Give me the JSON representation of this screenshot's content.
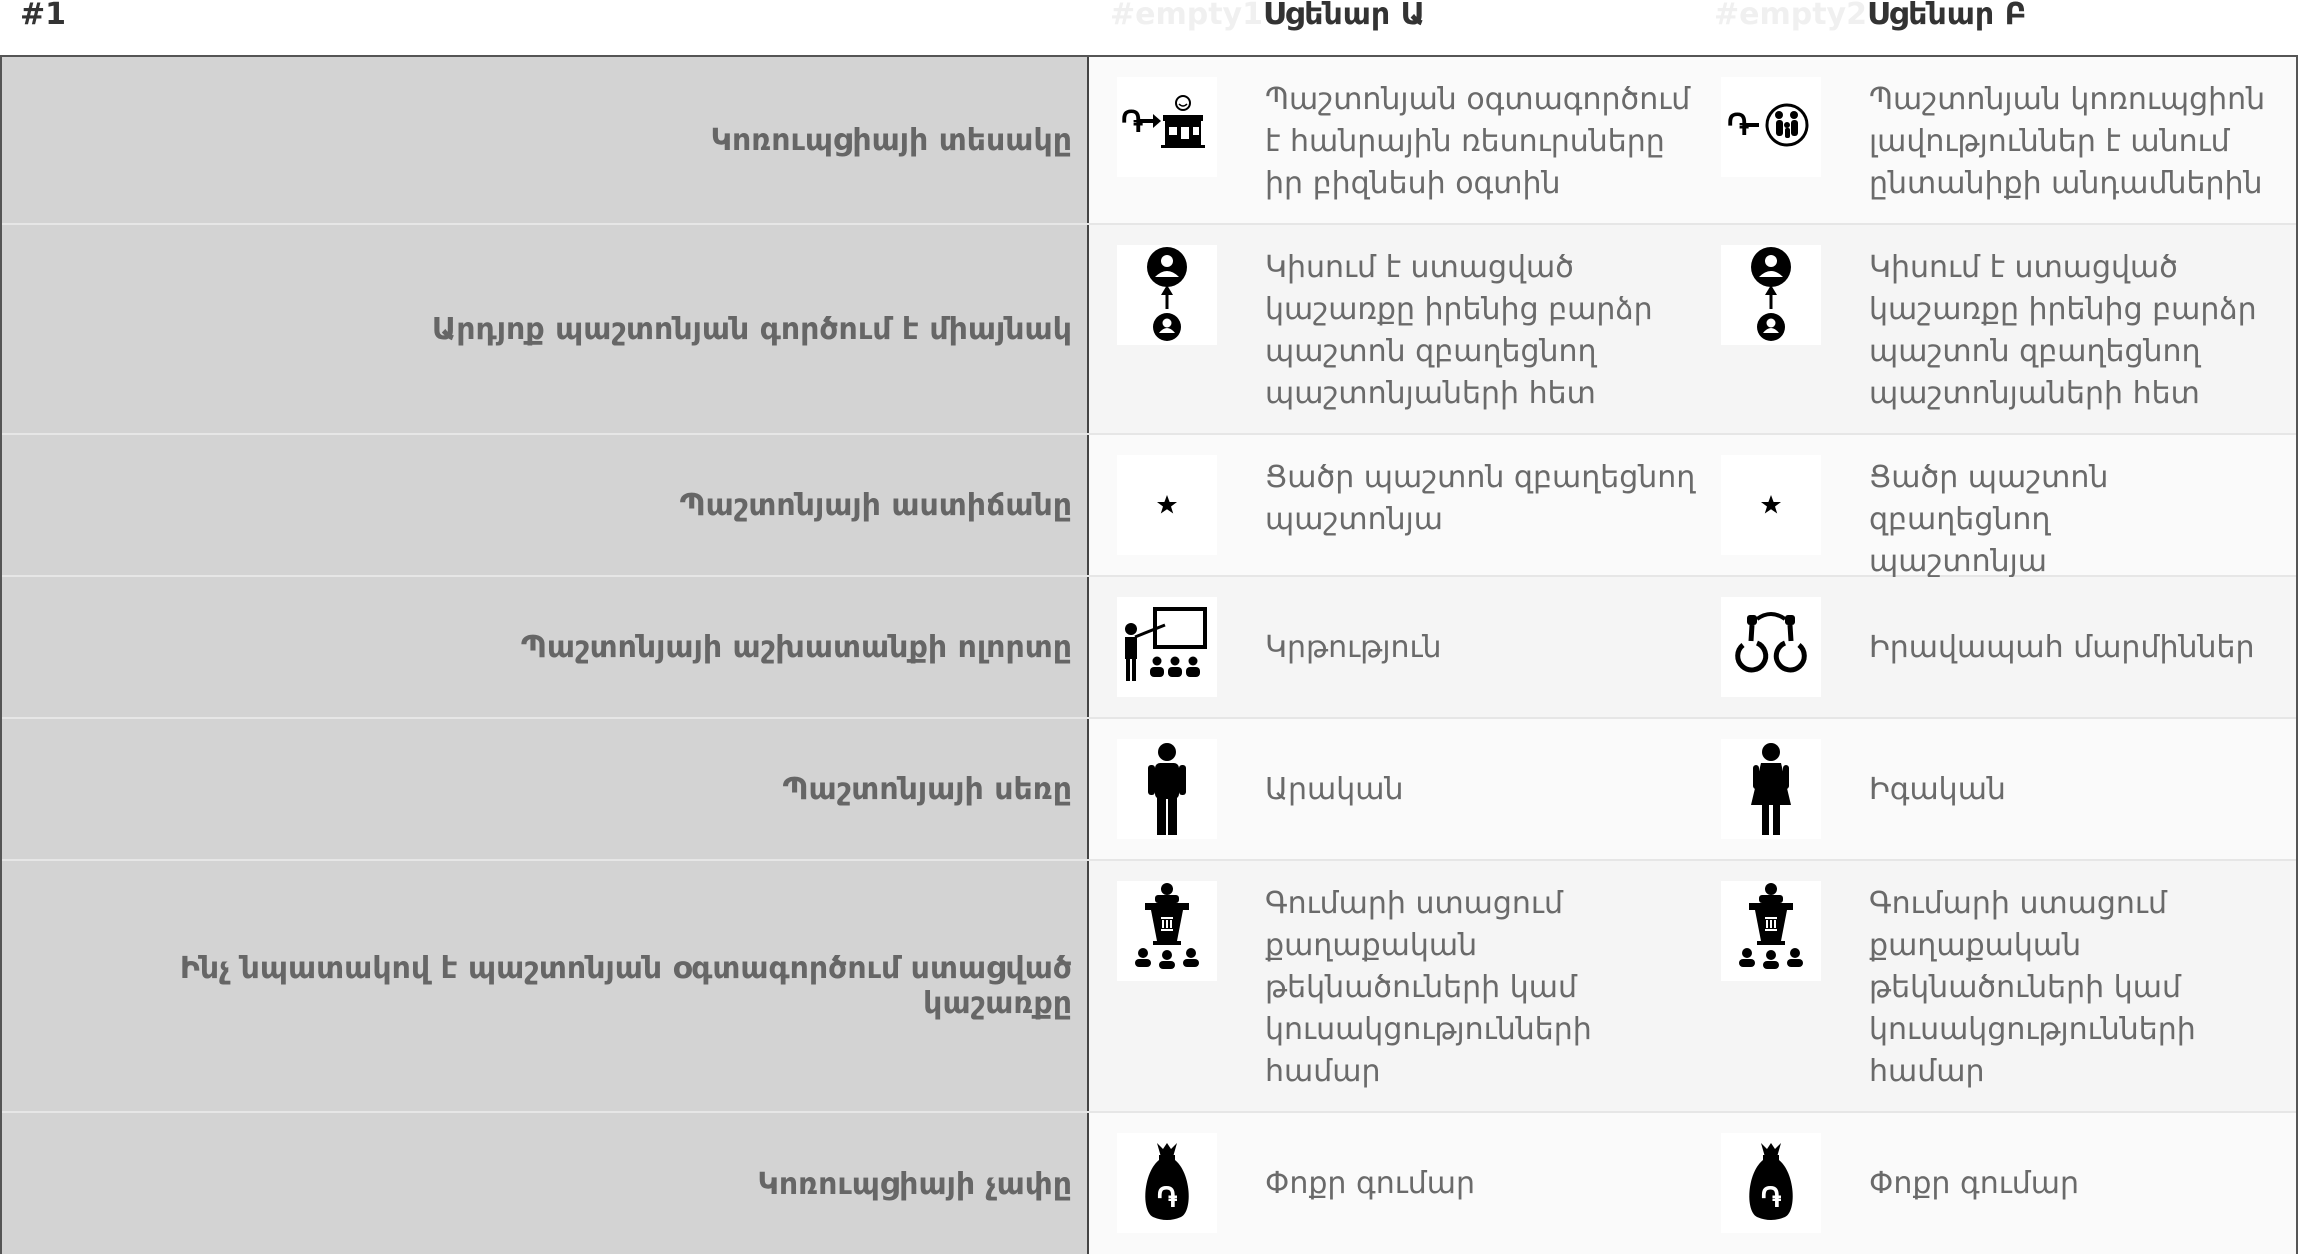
{
  "header": {
    "number": "#1",
    "ghost_a": "#empty1",
    "scenario_a": "Սցենար Ա",
    "ghost_b": "#empty2",
    "scenario_b": "Սցենար Բ"
  },
  "rows": [
    {
      "label": "Կոռուպցիայի տեսակը",
      "a": {
        "icon": "money-to-shop-icon",
        "text": [
          "Պաշտոնյան օգտագործում",
          "է հանրային ռեսուրսները",
          "իր բիզնեսի օգտին"
        ]
      },
      "b": {
        "icon": "money-to-family-icon",
        "text": [
          "Պաշտոնյան կոռուպցիոն",
          "լավություններ է անում",
          "ընտանիքի անդամներին"
        ]
      }
    },
    {
      "label": "Արդյոք պաշտոնյան գործում է միայնակ",
      "a": {
        "icon": "person-to-superior-icon",
        "text": [
          "Կիսում է ստացված",
          "կաշառքը իրենից բարձր",
          "պաշտոն զբաղեցնող",
          "պաշտոնյաների հետ"
        ]
      },
      "b": {
        "icon": "person-to-superior-icon",
        "text": [
          "Կիսում է ստացված",
          "կաշառքը իրենից բարձր",
          "պաշտոն զբաղեցնող",
          "պաշտոնյաների հետ"
        ]
      }
    },
    {
      "label": "Պաշտոնյայի աստիճանը",
      "a": {
        "icon": "star-icon",
        "text": [
          "Ցածր պաշտոն զբաղեցնող",
          "պաշտոնյա"
        ]
      },
      "b": {
        "icon": "star-icon",
        "text": [
          "Ցածր պաշտոն զբաղեցնող",
          "պաշտոնյա"
        ]
      }
    },
    {
      "label": "Պաշտոնյայի աշխատանքի ոլորտը",
      "a": {
        "icon": "teacher-classroom-icon",
        "text": [
          "Կրթություն"
        ]
      },
      "b": {
        "icon": "handcuffs-icon",
        "text": [
          "Իրավապահ մարմիններ"
        ]
      }
    },
    {
      "label": "Պաշտոնյայի սեռը",
      "a": {
        "icon": "man-icon",
        "text": [
          "Արական"
        ]
      },
      "b": {
        "icon": "woman-icon",
        "text": [
          "Իգական"
        ]
      }
    },
    {
      "label": "Ինչ նպատակով է պաշտոնյան օգտագործում ստացված կաշառքը",
      "a": {
        "icon": "podium-speaker-icon",
        "text": [
          "Գումարի ստացում",
          "քաղաքական",
          "թեկնածուների կամ",
          "կուսակցությունների",
          "համար"
        ]
      },
      "b": {
        "icon": "podium-speaker-icon",
        "text": [
          "Գումարի ստացում",
          "քաղաքական",
          "թեկնածուների կամ",
          "կուսակցությունների",
          "համար"
        ]
      }
    },
    {
      "label": "Կոռուպցիայի չափը",
      "a": {
        "icon": "money-bag-icon",
        "text": [
          "Փոքր գումար"
        ]
      },
      "b": {
        "icon": "money-bag-icon",
        "text": [
          "Փոքր գումար"
        ]
      }
    }
  ]
}
